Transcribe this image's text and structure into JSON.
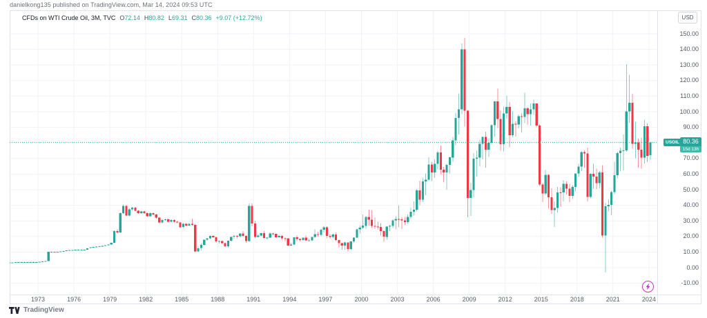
{
  "header": {
    "published": "danielkong135 published on TradingView.com, Mar 14, 2024 09:53 UTC"
  },
  "legend": {
    "title": "CFDs on WTI Crude Oil, 3M, TVC",
    "ohlc": [
      {
        "label": "O",
        "value": "72.14"
      },
      {
        "label": "H",
        "value": "80.82"
      },
      {
        "label": "L",
        "value": "69.31"
      },
      {
        "label": "C",
        "value": "80.36"
      }
    ],
    "change": "+9.07 (+12.72%)"
  },
  "price_axis": {
    "currency": "USD"
  },
  "price_label": {
    "symbol": "USOIL",
    "price": "80.36",
    "countdown": "15d 13h"
  },
  "marker": {
    "icon": "lightning",
    "color": "#cb2ece",
    "year": 2024
  },
  "footer": {
    "brand": "TradingView"
  },
  "colors": {
    "up": "#26a69a",
    "down": "#f23645",
    "grid": "#f0f3fa",
    "frame": "#e0e3eb",
    "accent": "#26a69a",
    "axis_text": "#555b63"
  },
  "chart_data": {
    "type": "candlestick",
    "title": "CFDs on WTI Crude Oil",
    "symbol": "USOIL",
    "exchange": "TVC",
    "interval": "3M",
    "currency": "USD",
    "last_price": 80.36,
    "y_axis": {
      "min": -10,
      "max": 150,
      "step": 10,
      "ticks": [
        150,
        140,
        130,
        120,
        110,
        100,
        90,
        80,
        70,
        60,
        50,
        40,
        30,
        20,
        10,
        0,
        -10
      ]
    },
    "x_axis": {
      "tick_years": [
        1973,
        1976,
        1979,
        1982,
        1985,
        1988,
        1991,
        1994,
        1997,
        2000,
        2003,
        2006,
        2009,
        2012,
        2015,
        2018,
        2021,
        2024
      ]
    },
    "start": {
      "year": 1970,
      "quarter": 3
    },
    "candles": [
      [
        3.3,
        3.4,
        3.2,
        3.3
      ],
      [
        3.3,
        3.4,
        3.2,
        3.4
      ],
      [
        3.4,
        3.6,
        3.3,
        3.6
      ],
      [
        3.6,
        3.7,
        3.5,
        3.6
      ],
      [
        3.6,
        3.7,
        3.5,
        3.6
      ],
      [
        3.6,
        3.7,
        3.5,
        3.6
      ],
      [
        3.6,
        3.7,
        3.5,
        3.6
      ],
      [
        3.6,
        3.7,
        3.5,
        3.6
      ],
      [
        3.6,
        3.7,
        3.5,
        3.6
      ],
      [
        3.6,
        3.7,
        3.5,
        3.6
      ],
      [
        3.6,
        3.8,
        3.5,
        3.8
      ],
      [
        3.8,
        3.9,
        3.7,
        3.9
      ],
      [
        3.9,
        4.3,
        3.8,
        4.3
      ],
      [
        4.3,
        10.1,
        4.2,
        10.1
      ],
      [
        10.1,
        10.2,
        9.9,
        10.1
      ],
      [
        10.1,
        10.2,
        9.8,
        9.9
      ],
      [
        9.9,
        10.2,
        9.8,
        10.1
      ],
      [
        10.1,
        10.5,
        10,
        10.4
      ],
      [
        10.4,
        10.8,
        10.3,
        10.7
      ],
      [
        10.7,
        11.1,
        10.6,
        11
      ],
      [
        11,
        11.3,
        10.9,
        11.2
      ],
      [
        11.2,
        11.3,
        11,
        11.2
      ],
      [
        11.2,
        11.6,
        11.1,
        11.5
      ],
      [
        11.5,
        11.7,
        11.4,
        11.6
      ],
      [
        11.6,
        11.7,
        11.4,
        11.6
      ],
      [
        11.6,
        11.7,
        11.5,
        11.6
      ],
      [
        11.6,
        12.6,
        11.5,
        12.5
      ],
      [
        12.5,
        13.1,
        12.4,
        13
      ],
      [
        13,
        13.4,
        12.9,
        13.3
      ],
      [
        13.3,
        13.7,
        13.2,
        13.6
      ],
      [
        13.6,
        13.9,
        13.5,
        13.8
      ],
      [
        13.8,
        14.1,
        13.7,
        14
      ],
      [
        14,
        14.4,
        13.9,
        14.3
      ],
      [
        14.3,
        15,
        14.2,
        14.9
      ],
      [
        14.9,
        16.1,
        14.8,
        15.9
      ],
      [
        15.9,
        23.8,
        15.8,
        23.5
      ],
      [
        23.5,
        24.5,
        22,
        22.5
      ],
      [
        22.5,
        35.5,
        22.3,
        35
      ],
      [
        35,
        40.5,
        34.5,
        39.5
      ],
      [
        39.5,
        40,
        33,
        33.5
      ],
      [
        33.5,
        38,
        33,
        37.5
      ],
      [
        37.5,
        39,
        36.5,
        38.5
      ],
      [
        38.5,
        39,
        36,
        36.5
      ],
      [
        36.5,
        37,
        34.5,
        35
      ],
      [
        35,
        36.5,
        34.5,
        36
      ],
      [
        36,
        36.5,
        34.5,
        35
      ],
      [
        35,
        35.5,
        32.5,
        33
      ],
      [
        33,
        35.5,
        32.5,
        35
      ],
      [
        35,
        35.5,
        33.5,
        34
      ],
      [
        34,
        34.5,
        31.5,
        32
      ],
      [
        32,
        32.5,
        28.5,
        29
      ],
      [
        29,
        31,
        28.5,
        30.5
      ],
      [
        30.5,
        31.5,
        30,
        31
      ],
      [
        31,
        31.5,
        29,
        29.5
      ],
      [
        29.5,
        31,
        29.2,
        30.5
      ],
      [
        30.5,
        31,
        29,
        29.5
      ],
      [
        29.5,
        30,
        28.5,
        29
      ],
      [
        29,
        29.5,
        25.5,
        26
      ],
      [
        26,
        28.5,
        25.5,
        28
      ],
      [
        28,
        28.5,
        26.5,
        27
      ],
      [
        27,
        28.5,
        26.5,
        28
      ],
      [
        28,
        31.5,
        27,
        27.5
      ],
      [
        27.5,
        28,
        10,
        10.5
      ],
      [
        10.5,
        13.5,
        9.9,
        12.5
      ],
      [
        12.5,
        15.5,
        11,
        14.5
      ],
      [
        14.5,
        18,
        14.2,
        17.9
      ],
      [
        17.9,
        19,
        17.3,
        18.7
      ],
      [
        18.7,
        20.5,
        18.3,
        20.3
      ],
      [
        20.3,
        20.8,
        19,
        19.5
      ],
      [
        19.5,
        20,
        16,
        16.7
      ],
      [
        16.7,
        17.5,
        15.5,
        17
      ],
      [
        17,
        17.5,
        15.5,
        15.7
      ],
      [
        15.7,
        16.2,
        13.2,
        13.8
      ],
      [
        13.8,
        17.5,
        12.8,
        17.2
      ],
      [
        17.2,
        20,
        16.9,
        19.8
      ],
      [
        19.8,
        21,
        18.5,
        20.3
      ],
      [
        20.3,
        20.8,
        18.8,
        20.1
      ],
      [
        20.1,
        22,
        19.2,
        21.8
      ],
      [
        21.8,
        23.5,
        19.8,
        20.3
      ],
      [
        20.3,
        20.8,
        15.9,
        17
      ],
      [
        17,
        41.1,
        16.5,
        39.5
      ],
      [
        39.5,
        41.1,
        26.5,
        28.4
      ],
      [
        28.4,
        30,
        19,
        19.6
      ],
      [
        19.6,
        21.5,
        19.2,
        20.6
      ],
      [
        20.6,
        22.3,
        20,
        22.2
      ],
      [
        22.2,
        23.5,
        18.9,
        19.1
      ],
      [
        19.1,
        19.8,
        17.9,
        19.2
      ],
      [
        19.2,
        22.5,
        19,
        21.9
      ],
      [
        21.9,
        22.4,
        20.8,
        21.7
      ],
      [
        21.7,
        21.9,
        19,
        19.5
      ],
      [
        19.5,
        21,
        19.2,
        20.4
      ],
      [
        20.4,
        20.8,
        17.9,
        18.9
      ],
      [
        18.9,
        19.3,
        16.8,
        18.8
      ],
      [
        18.8,
        18.9,
        13.9,
        14.2
      ],
      [
        14.2,
        16,
        13.9,
        14.8
      ],
      [
        14.8,
        19.5,
        14.5,
        19.4
      ],
      [
        19.4,
        20.5,
        17,
        18.4
      ],
      [
        18.4,
        18.9,
        16.9,
        17.8
      ],
      [
        17.8,
        19.3,
        17.3,
        19.2
      ],
      [
        19.2,
        20.5,
        17.3,
        17.4
      ],
      [
        17.4,
        18.5,
        17,
        17.5
      ],
      [
        17.5,
        19.8,
        17,
        19.6
      ],
      [
        19.6,
        24.5,
        19,
        21.5
      ],
      [
        21.5,
        23,
        19.8,
        21
      ],
      [
        21,
        25,
        20.2,
        24.4
      ],
      [
        24.4,
        26.6,
        22.5,
        25.9
      ],
      [
        25.9,
        26.6,
        19,
        20.4
      ],
      [
        20.4,
        21.5,
        18.5,
        19.8
      ],
      [
        19.8,
        21.9,
        18.8,
        21.2
      ],
      [
        21.2,
        22.5,
        17,
        17.6
      ],
      [
        17.6,
        18,
        13,
        15.6
      ],
      [
        15.6,
        16,
        11.6,
        14.2
      ],
      [
        14.2,
        16.5,
        11.5,
        16.1
      ],
      [
        16.1,
        16.2,
        10.4,
        12
      ],
      [
        12,
        17,
        11,
        16.8
      ],
      [
        16.8,
        19.5,
        15.9,
        19.3
      ],
      [
        19.3,
        25,
        19,
        24.5
      ],
      [
        24.5,
        27,
        21.8,
        25.6
      ],
      [
        25.6,
        34.1,
        24.7,
        26.9
      ],
      [
        26.9,
        33,
        25,
        32.5
      ],
      [
        32.5,
        37.2,
        27,
        30.8
      ],
      [
        30.8,
        36.9,
        25.5,
        26.8
      ],
      [
        26.8,
        32,
        25,
        26.3
      ],
      [
        26.3,
        29.5,
        24.5,
        26.2
      ],
      [
        26.2,
        28.5,
        20.5,
        23.4
      ],
      [
        23.4,
        24,
        16.7,
        19.8
      ],
      [
        19.8,
        26.5,
        18,
        26.3
      ],
      [
        26.3,
        27.5,
        23.5,
        26.8
      ],
      [
        26.8,
        31,
        25.5,
        30.4
      ],
      [
        30.4,
        33,
        24.5,
        31.2
      ],
      [
        31.2,
        39.9,
        26,
        31
      ],
      [
        31,
        32.5,
        25,
        30.2
      ],
      [
        30.2,
        32.5,
        27.5,
        29.2
      ],
      [
        29.2,
        34,
        28,
        32.5
      ],
      [
        32.5,
        38.5,
        31.5,
        35.8
      ],
      [
        35.8,
        42.5,
        33.5,
        37.1
      ],
      [
        37.1,
        50.5,
        36,
        49.6
      ],
      [
        49.6,
        55.7,
        40,
        43.5
      ],
      [
        43.5,
        57.5,
        42,
        55.4
      ],
      [
        55.4,
        60.5,
        46.5,
        56.5
      ],
      [
        56.5,
        70.9,
        55.5,
        66.2
      ],
      [
        66.2,
        68,
        55.5,
        61
      ],
      [
        61,
        69.5,
        57.5,
        66.6
      ],
      [
        66.6,
        75,
        63,
        73.9
      ],
      [
        73.9,
        78.4,
        60,
        62.9
      ],
      [
        62.9,
        64.5,
        54.9,
        61.1
      ],
      [
        61.1,
        66.5,
        49.9,
        65.9
      ],
      [
        65.9,
        71,
        60.5,
        70.7
      ],
      [
        70.7,
        83.9,
        68,
        81.7
      ],
      [
        81.7,
        99.3,
        78.5,
        96
      ],
      [
        96,
        111.8,
        85.4,
        101.6
      ],
      [
        101.6,
        143.7,
        98.5,
        140
      ],
      [
        140,
        147.3,
        90.5,
        100.6
      ],
      [
        100.6,
        101,
        32.4,
        44.6
      ],
      [
        44.6,
        54.5,
        33.2,
        49.7
      ],
      [
        49.7,
        73.4,
        45,
        69.9
      ],
      [
        69.9,
        75,
        58.3,
        70.6
      ],
      [
        70.6,
        82,
        65,
        79.4
      ],
      [
        79.4,
        84,
        69.5,
        83.8
      ],
      [
        83.8,
        87.1,
        64.2,
        75.6
      ],
      [
        75.6,
        83,
        71.1,
        80
      ],
      [
        80,
        92.1,
        79,
        91.4
      ],
      [
        91.4,
        106.9,
        83.8,
        106.7
      ],
      [
        106.7,
        114.8,
        89.6,
        95.4
      ],
      [
        95.4,
        100.6,
        74.9,
        79.2
      ],
      [
        79.2,
        103.4,
        74.5,
        98.8
      ],
      [
        98.8,
        110.5,
        95.4,
        103
      ],
      [
        103,
        106.4,
        77.3,
        85
      ],
      [
        85,
        100.4,
        83.6,
        92.2
      ],
      [
        92.2,
        93.7,
        84,
        91.8
      ],
      [
        91.8,
        98.2,
        89.3,
        97.2
      ],
      [
        97.2,
        99,
        86.7,
        96.6
      ],
      [
        96.6,
        112.2,
        92.7,
        102.3
      ],
      [
        102.3,
        103,
        91.8,
        98.4
      ],
      [
        98.4,
        105.2,
        91.2,
        101.6
      ],
      [
        101.6,
        107.7,
        98,
        105.4
      ],
      [
        105.4,
        105.5,
        90,
        91.2
      ],
      [
        91.2,
        92,
        52.4,
        53.3
      ],
      [
        53.3,
        54.5,
        42,
        47.6
      ],
      [
        47.6,
        62.6,
        46.5,
        59.5
      ],
      [
        59.5,
        60,
        37.8,
        45.1
      ],
      [
        45.1,
        50.9,
        34.5,
        37
      ],
      [
        37,
        42.5,
        26.1,
        38.3
      ],
      [
        38.3,
        51.7,
        35.2,
        48.3
      ],
      [
        48.3,
        51.6,
        39.2,
        48.2
      ],
      [
        48.2,
        56.2,
        42.5,
        53.7
      ],
      [
        53.7,
        55.2,
        47,
        50.6
      ],
      [
        50.6,
        53.8,
        42.1,
        46
      ],
      [
        46,
        52.9,
        44,
        51.7
      ],
      [
        51.7,
        60.5,
        49.1,
        60.4
      ],
      [
        60.4,
        66.7,
        58.1,
        64.9
      ],
      [
        64.9,
        74.5,
        62,
        74.2
      ],
      [
        74.2,
        75.3,
        64,
        73.3
      ],
      [
        73.3,
        76.9,
        42.4,
        45.4
      ],
      [
        45.4,
        60.7,
        44.4,
        60.1
      ],
      [
        60.1,
        66.6,
        50.6,
        58.5
      ],
      [
        58.5,
        63.4,
        50.5,
        54.1
      ],
      [
        54.1,
        61.9,
        50.9,
        61.1
      ],
      [
        61.1,
        65.7,
        19.3,
        20.5
      ],
      [
        20.5,
        41.6,
        -3,
        39.3
      ],
      [
        39.3,
        43.8,
        36.1,
        40.2
      ],
      [
        40.2,
        49.3,
        33.6,
        48.5
      ],
      [
        48.5,
        67.9,
        47.2,
        59.2
      ],
      [
        59.2,
        74.4,
        57.3,
        73.5
      ],
      [
        73.5,
        76.9,
        61.7,
        75
      ],
      [
        75,
        85.4,
        62.4,
        75.2
      ],
      [
        75.2,
        130.5,
        74.3,
        100.3
      ],
      [
        100.3,
        123.7,
        93,
        105.8
      ],
      [
        105.8,
        111.4,
        76.3,
        79.5
      ],
      [
        79.5,
        93.6,
        70.1,
        80.3
      ],
      [
        80.3,
        83,
        64.1,
        75.7
      ],
      [
        75.7,
        83.5,
        63.6,
        70.6
      ],
      [
        70.6,
        95,
        66.8,
        90.8
      ],
      [
        90.8,
        92.5,
        67.7,
        71.7
      ],
      [
        72.14,
        80.82,
        69.31,
        80.36
      ]
    ]
  }
}
